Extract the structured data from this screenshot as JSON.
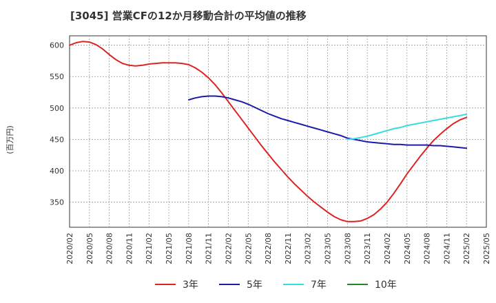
{
  "chart_data": {
    "type": "line",
    "title": "[3045]  営業CFの12か月移動合計の平均値の推移",
    "ylabel": "(百万円)",
    "xlabel": "",
    "ylim": [
      310,
      615
    ],
    "yticks": [
      350,
      400,
      450,
      500,
      550,
      600
    ],
    "x_ticks": [
      "2020/02",
      "2020/05",
      "2020/08",
      "2020/11",
      "2021/02",
      "2021/05",
      "2021/08",
      "2021/11",
      "2022/02",
      "2022/05",
      "2022/08",
      "2022/11",
      "2023/02",
      "2023/05",
      "2023/08",
      "2023/11",
      "2024/02",
      "2024/05",
      "2024/08",
      "2024/11",
      "2025/02",
      "2025/05"
    ],
    "grid": true,
    "legend_position": "bottom",
    "series": [
      {
        "name": "3年",
        "color": "#dd2222",
        "x": [
          "2020/02",
          "2020/03",
          "2020/04",
          "2020/05",
          "2020/06",
          "2020/07",
          "2020/08",
          "2020/09",
          "2020/10",
          "2020/11",
          "2020/12",
          "2021/01",
          "2021/02",
          "2021/03",
          "2021/04",
          "2021/05",
          "2021/06",
          "2021/07",
          "2021/08",
          "2021/09",
          "2021/10",
          "2021/11",
          "2021/12",
          "2022/01",
          "2022/02",
          "2022/03",
          "2022/04",
          "2022/05",
          "2022/06",
          "2022/07",
          "2022/08",
          "2022/09",
          "2022/10",
          "2022/11",
          "2022/12",
          "2023/01",
          "2023/02",
          "2023/03",
          "2023/04",
          "2023/05",
          "2023/06",
          "2023/07",
          "2023/08",
          "2023/09",
          "2023/10",
          "2023/11",
          "2023/12",
          "2024/01",
          "2024/02",
          "2024/03",
          "2024/04",
          "2024/05",
          "2024/06",
          "2024/07",
          "2024/08",
          "2024/09",
          "2024/10",
          "2024/11",
          "2024/12",
          "2025/01",
          "2025/02"
        ],
        "values": [
          600,
          604,
          606,
          605,
          601,
          594,
          585,
          577,
          571,
          568,
          567,
          568,
          570,
          571,
          572,
          572,
          572,
          571,
          569,
          564,
          557,
          548,
          537,
          524,
          510,
          496,
          482,
          468,
          454,
          440,
          427,
          414,
          402,
          390,
          379,
          369,
          359,
          350,
          342,
          334,
          327,
          322,
          319,
          319,
          320,
          324,
          330,
          339,
          350,
          364,
          379,
          395,
          409,
          423,
          436,
          448,
          458,
          467,
          475,
          481,
          485
        ],
        "values_note": "estimated"
      },
      {
        "name": "5年",
        "color": "#1a1aaa",
        "x": [
          "2021/08",
          "2021/09",
          "2021/10",
          "2021/11",
          "2021/12",
          "2022/01",
          "2022/02",
          "2022/03",
          "2022/04",
          "2022/05",
          "2022/06",
          "2022/07",
          "2022/08",
          "2022/09",
          "2022/10",
          "2022/11",
          "2022/12",
          "2023/01",
          "2023/02",
          "2023/03",
          "2023/04",
          "2023/05",
          "2023/06",
          "2023/07",
          "2023/08",
          "2023/09",
          "2023/10",
          "2023/11",
          "2023/12",
          "2024/01",
          "2024/02",
          "2024/03",
          "2024/04",
          "2024/05",
          "2024/06",
          "2024/07",
          "2024/08",
          "2024/09",
          "2024/10",
          "2024/11",
          "2024/12",
          "2025/01",
          "2025/02"
        ],
        "values": [
          513,
          516,
          518,
          519,
          519,
          518,
          516,
          513,
          510,
          506,
          501,
          496,
          491,
          487,
          483,
          480,
          477,
          474,
          471,
          468,
          465,
          462,
          459,
          456,
          452,
          450,
          448,
          446,
          445,
          444,
          443,
          442,
          442,
          441,
          441,
          441,
          441,
          440,
          440,
          439,
          438,
          437,
          436
        ]
      },
      {
        "name": "7年",
        "color": "#33dddd",
        "x": [
          "2023/08",
          "2023/09",
          "2023/10",
          "2023/11",
          "2023/12",
          "2024/01",
          "2024/02",
          "2024/03",
          "2024/04",
          "2024/05",
          "2024/06",
          "2024/07",
          "2024/08",
          "2024/09",
          "2024/10",
          "2024/11",
          "2024/12",
          "2025/01",
          "2025/02"
        ],
        "values": [
          450,
          451,
          453,
          455,
          458,
          461,
          464,
          467,
          469,
          472,
          474,
          476,
          478,
          480,
          482,
          484,
          486,
          488,
          490
        ]
      },
      {
        "name": "10年",
        "color": "#228822",
        "x": [],
        "values": []
      }
    ]
  }
}
